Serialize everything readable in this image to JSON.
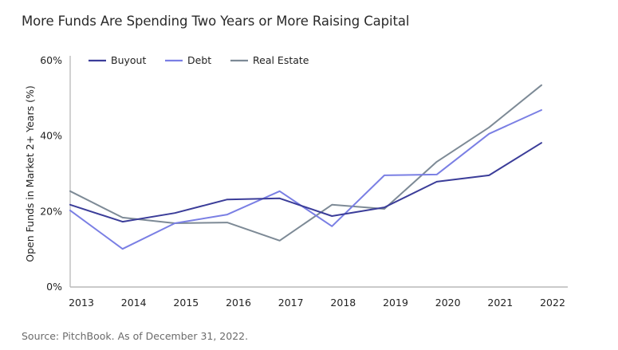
{
  "chart_data": {
    "type": "line",
    "title": "More Funds Are Spending Two Years or More Raising Capital",
    "xlabel": "",
    "ylabel": "Open Funds in Market 2+ Years (%)",
    "x": [
      "2013",
      "2014",
      "2015",
      "2016",
      "2017",
      "2018",
      "2019",
      "2020",
      "2021",
      "2022"
    ],
    "ylim": [
      0,
      60
    ],
    "yticks": [
      0,
      20,
      40,
      60
    ],
    "ytick_labels": [
      "0%",
      "20%",
      "40%",
      "60%"
    ],
    "grid": false,
    "legend_position": "top-left",
    "series": [
      {
        "name": "Buyout",
        "color": "#3b3d99",
        "values": [
          21.8,
          17.3,
          19.6,
          23.2,
          23.5,
          18.8,
          21.1,
          27.9,
          29.6,
          38.2
        ]
      },
      {
        "name": "Debt",
        "color": "#7a7fe4",
        "values": [
          20.3,
          10.1,
          16.9,
          19.2,
          25.4,
          16.1,
          29.6,
          29.8,
          40.6,
          46.9
        ]
      },
      {
        "name": "Real Estate",
        "color": "#7d8a96",
        "values": [
          25.4,
          18.4,
          16.9,
          17.1,
          12.3,
          21.8,
          20.7,
          33.2,
          42.3,
          53.5
        ]
      }
    ]
  },
  "footer": {
    "source": "Source: PitchBook. As of December 31, 2022."
  }
}
